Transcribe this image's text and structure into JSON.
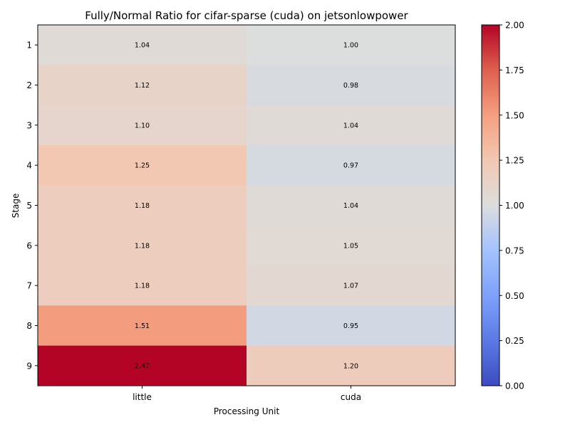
{
  "chart_data": {
    "type": "heatmap",
    "title": "Fully/Normal Ratio for cifar-sparse (cuda) on jetsonlowpower",
    "xlabel": "Processing Unit",
    "ylabel": "Stage",
    "x_categories": [
      "little",
      "cuda"
    ],
    "y_categories": [
      "1",
      "2",
      "3",
      "4",
      "5",
      "6",
      "7",
      "8",
      "9"
    ],
    "values": [
      [
        1.04,
        1.0
      ],
      [
        1.12,
        0.98
      ],
      [
        1.1,
        1.04
      ],
      [
        1.25,
        0.97
      ],
      [
        1.18,
        1.04
      ],
      [
        1.18,
        1.05
      ],
      [
        1.18,
        1.07
      ],
      [
        1.51,
        0.95
      ],
      [
        2.47,
        1.2
      ]
    ],
    "value_labels": [
      [
        "1.04",
        "1.00"
      ],
      [
        "1.12",
        "0.98"
      ],
      [
        "1.10",
        "1.04"
      ],
      [
        "1.25",
        "0.97"
      ],
      [
        "1.18",
        "1.04"
      ],
      [
        "1.18",
        "1.05"
      ],
      [
        "1.18",
        "1.07"
      ],
      [
        "1.51",
        "0.95"
      ],
      [
        "2.47",
        "1.20"
      ]
    ],
    "colormap": "coolwarm",
    "colorbar": {
      "vmin": 0.0,
      "vmax": 2.0,
      "ticks": [
        0.0,
        0.25,
        0.5,
        0.75,
        1.0,
        1.25,
        1.5,
        1.75,
        2.0
      ],
      "tick_labels": [
        "0.00",
        "0.25",
        "0.50",
        "0.75",
        "1.00",
        "1.25",
        "1.50",
        "1.75",
        "2.00"
      ]
    }
  }
}
